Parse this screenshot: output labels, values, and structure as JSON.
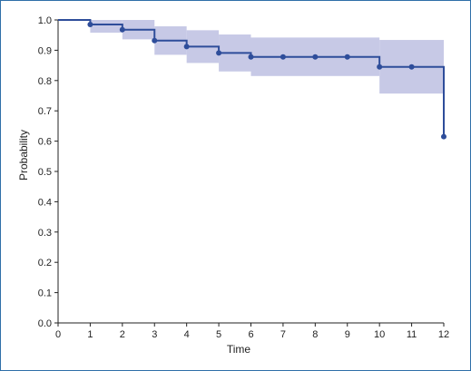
{
  "colors": {
    "frame": "#2f6fa8",
    "line": "#2e4d9a",
    "band": "#c7c9e6",
    "axis": "#222222"
  },
  "chart_data": {
    "type": "line",
    "title": "",
    "xlabel": "Time",
    "ylabel": "Probability",
    "xlim": [
      0,
      12
    ],
    "ylim": [
      0,
      1
    ],
    "x_ticks": [
      "0",
      "1",
      "2",
      "3",
      "4",
      "5",
      "6",
      "7",
      "8",
      "9",
      "10",
      "11",
      "12"
    ],
    "y_ticks": [
      "0.0",
      "0.1",
      "0.2",
      "0.3",
      "0.4",
      "0.5",
      "0.6",
      "0.7",
      "0.8",
      "0.9",
      "1.0"
    ],
    "grid": false,
    "step": true,
    "series": [
      {
        "steps": [
          {
            "x": 0,
            "y": 1.0
          },
          {
            "x": 1,
            "y": 0.985
          },
          {
            "x": 2,
            "y": 0.968
          },
          {
            "x": 3,
            "y": 0.932
          },
          {
            "x": 4,
            "y": 0.912
          },
          {
            "x": 5,
            "y": 0.891
          },
          {
            "x": 6,
            "y": 0.878
          },
          {
            "x": 10,
            "y": 0.845
          },
          {
            "x": 12,
            "y": 0.615
          }
        ],
        "end_x": 12,
        "points": [
          {
            "x": 1,
            "y": 0.985
          },
          {
            "x": 2,
            "y": 0.968
          },
          {
            "x": 3,
            "y": 0.932
          },
          {
            "x": 4,
            "y": 0.912
          },
          {
            "x": 5,
            "y": 0.891
          },
          {
            "x": 6,
            "y": 0.878
          },
          {
            "x": 7,
            "y": 0.878
          },
          {
            "x": 8,
            "y": 0.878
          },
          {
            "x": 9,
            "y": 0.878
          },
          {
            "x": 10,
            "y": 0.845
          },
          {
            "x": 11,
            "y": 0.845
          },
          {
            "x": 12,
            "y": 0.615
          }
        ],
        "confidence_band": [
          {
            "x0": 1,
            "x1": 2,
            "lo": 0.958,
            "hi": 1.0
          },
          {
            "x0": 2,
            "x1": 3,
            "lo": 0.936,
            "hi": 1.0
          },
          {
            "x0": 3,
            "x1": 4,
            "lo": 0.885,
            "hi": 0.979
          },
          {
            "x0": 4,
            "x1": 5,
            "lo": 0.858,
            "hi": 0.966
          },
          {
            "x0": 5,
            "x1": 6,
            "lo": 0.83,
            "hi": 0.952
          },
          {
            "x0": 6,
            "x1": 10,
            "lo": 0.815,
            "hi": 0.942
          },
          {
            "x0": 10,
            "x1": 12,
            "lo": 0.757,
            "hi": 0.934
          }
        ]
      }
    ]
  }
}
